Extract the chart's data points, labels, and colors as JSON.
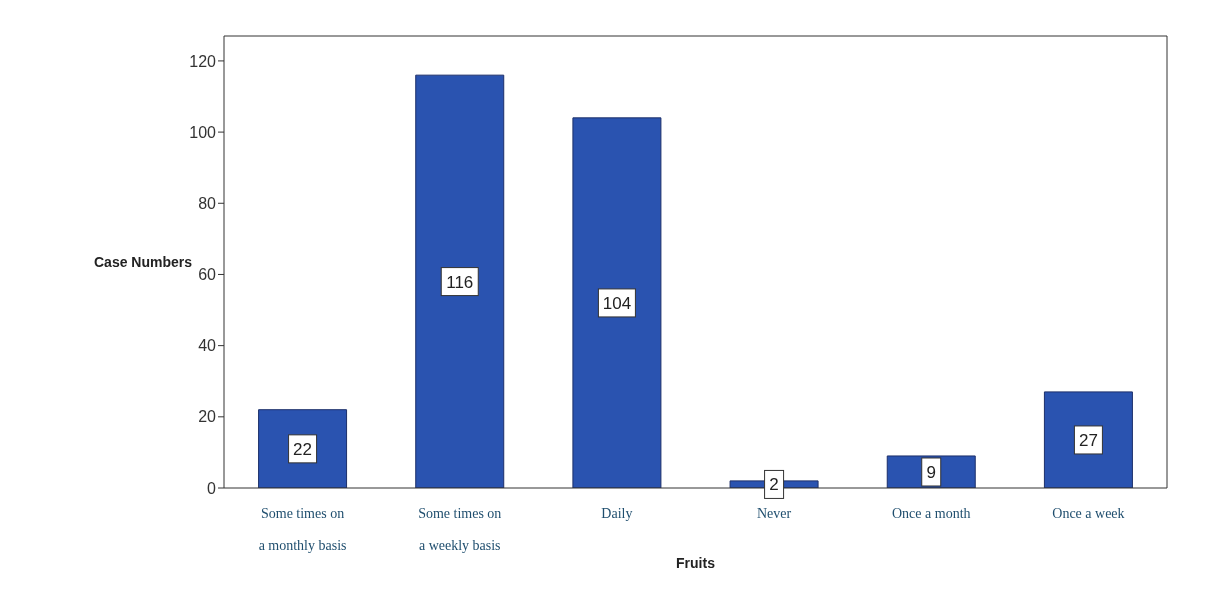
{
  "chart_data": {
    "type": "bar",
    "xlabel": "Fruits",
    "ylabel": "Case Numbers",
    "categories": [
      "Some times on a monthly basis",
      "Some times on a weekly basis",
      "Daily",
      "Never",
      "Once a month",
      "Once a week"
    ],
    "values": [
      22,
      116,
      104,
      2,
      9,
      27
    ],
    "color": "#2a53b0",
    "ylim": [
      0,
      127
    ],
    "yticks": [
      0,
      20,
      40,
      60,
      80,
      100,
      120
    ],
    "grid": false,
    "data_labels": true
  }
}
